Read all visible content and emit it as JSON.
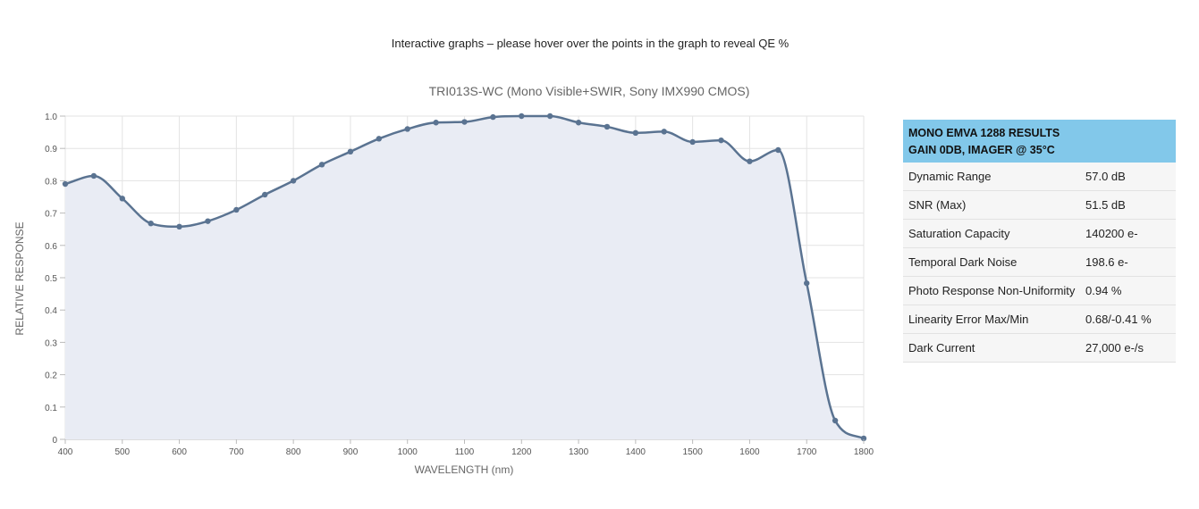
{
  "intro_text": "Interactive graphs – please hover over the points in the graph to reveal QE %",
  "chart_data": {
    "type": "line",
    "title": "TRI013S-WC (Mono Visible+SWIR, Sony IMX990 CMOS)",
    "xlabel": "WAVELENGTH (nm)",
    "ylabel": "RELATIVE RESPONSE",
    "xlim": [
      400,
      1800
    ],
    "ylim": [
      0,
      1.0
    ],
    "xticks": [
      400,
      500,
      600,
      700,
      800,
      900,
      1000,
      1100,
      1200,
      1300,
      1400,
      1500,
      1600,
      1700,
      1800
    ],
    "yticks": [
      "0",
      "0.1",
      "0.2",
      "0.3",
      "0.4",
      "0.5",
      "0.6",
      "0.7",
      "0.8",
      "0.9",
      "1.0"
    ],
    "grid": true,
    "line_color": "#5a7391",
    "fill_color": "#e9ecf4",
    "x": [
      400,
      450,
      500,
      550,
      600,
      650,
      700,
      750,
      800,
      850,
      900,
      950,
      1000,
      1050,
      1100,
      1150,
      1200,
      1250,
      1300,
      1350,
      1400,
      1450,
      1500,
      1550,
      1600,
      1650,
      1700,
      1750,
      1800
    ],
    "y": [
      0.79,
      0.815,
      0.745,
      0.668,
      0.658,
      0.675,
      0.71,
      0.757,
      0.8,
      0.85,
      0.89,
      0.93,
      0.96,
      0.98,
      0.982,
      0.997,
      1.0,
      1.0,
      0.98,
      0.967,
      0.948,
      0.952,
      0.92,
      0.925,
      0.86,
      0.895,
      0.483,
      0.058,
      0.003
    ]
  },
  "results": {
    "title_line1": "MONO EMVA 1288 RESULTS",
    "title_line2": "GAIN 0DB, IMAGER @ 35°C",
    "header_color": "#82c8ea",
    "rows": [
      {
        "label": "Dynamic Range",
        "value": "57.0 dB"
      },
      {
        "label": "SNR (Max)",
        "value": "51.5 dB"
      },
      {
        "label": "Saturation Capacity",
        "value": "140200 e-"
      },
      {
        "label": "Temporal Dark Noise",
        "value": "198.6 e-"
      },
      {
        "label": "Photo Response Non-Uniformity",
        "value": "0.94 %"
      },
      {
        "label": "Linearity Error Max/Min",
        "value": "0.68/-0.41 %"
      },
      {
        "label": "Dark Current",
        "value": "27,000 e-/s"
      }
    ]
  }
}
